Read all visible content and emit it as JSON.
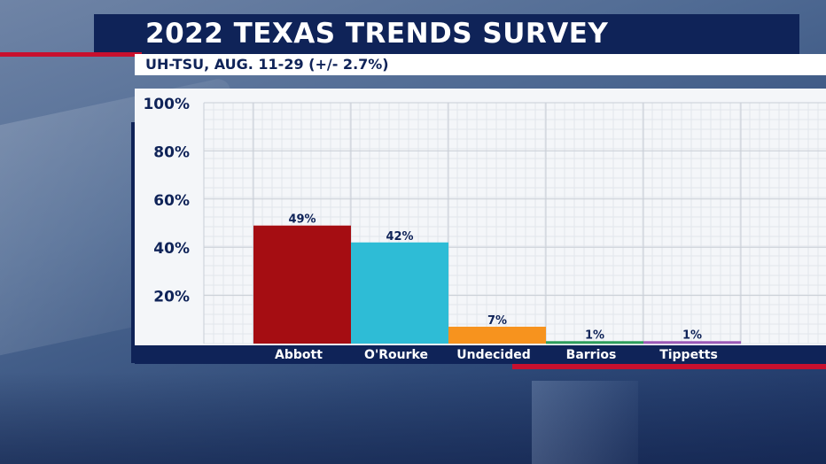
{
  "header": {
    "title": "2022 TEXAS TRENDS SURVEY",
    "subtitle": "UH-TSU, AUG. 11-29 (+/- 2.7%)"
  },
  "colors": {
    "navy": "#0f2358",
    "red_accent": "#c8102e"
  },
  "chart_data": {
    "type": "bar",
    "title": "",
    "xlabel": "",
    "ylabel": "",
    "ylim": [
      0,
      100
    ],
    "yticks": [
      "20%",
      "40%",
      "60%",
      "80%",
      "100%"
    ],
    "ytick_values": [
      20,
      40,
      60,
      80,
      100
    ],
    "grid": true,
    "categories": [
      "Abbott",
      "O'Rourke",
      "Undecided",
      "Barrios",
      "Tippetts"
    ],
    "values": [
      49,
      42,
      7,
      1,
      1
    ],
    "data_labels": [
      "49%",
      "42%",
      "7%",
      "1%",
      "1%"
    ],
    "bar_colors": [
      "#a50d12",
      "#2ebcd6",
      "#f7931e",
      "#2e9e5b",
      "#9b59b6"
    ]
  }
}
